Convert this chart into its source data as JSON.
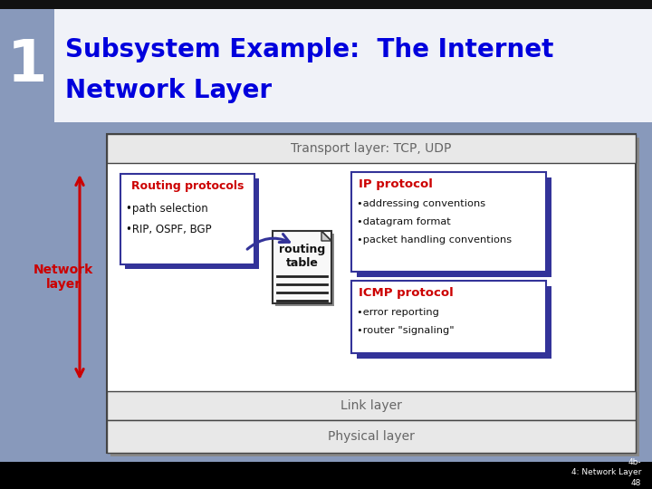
{
  "title_number": "1",
  "title_line1": "Subsystem Example:  The Internet",
  "title_line2": "Network Layer",
  "title_color": "#0000dd",
  "title_number_color": "#ffffff",
  "slide_bg_color": "#8899bb",
  "title_area_bg": "#dde4f0",
  "top_bar_color": "#111111",
  "content_bg": "#ffffff",
  "transport_label": "Transport layer: TCP, UDP",
  "link_label": "Link layer",
  "physical_label": "Physical layer",
  "network_layer_label": "Network\nlayer",
  "network_layer_color": "#cc0000",
  "routing_title": "Routing protocols",
  "routing_bullet1": "•path selection",
  "routing_bullet2": "•RIP, OSPF, BGP",
  "routing_title_color": "#cc0000",
  "routing_box_border": "#333399",
  "routing_shadow_color": "#333399",
  "routing_table_label": "routing\ntable",
  "ip_title": "IP protocol",
  "ip_bullet1": "•addressing conventions",
  "ip_bullet2": "•datagram format",
  "ip_bullet3": "•packet handling conventions",
  "ip_title_color": "#cc0000",
  "ip_box_border": "#333399",
  "icmp_title": "ICMP protocol",
  "icmp_bullet1": "•error reporting",
  "icmp_bullet2": "•router \"signaling\"",
  "icmp_title_color": "#cc0000",
  "icmp_box_border": "#333399",
  "footer_bg": "#000000",
  "footer_color": "#ffffff",
  "footer_text": "4b-\n4: Network Layer\n48",
  "layer_border_color": "#444444",
  "transport_bg": "#e8e8e8",
  "link_bg": "#e8e8e8",
  "physical_bg": "#e8e8e8"
}
